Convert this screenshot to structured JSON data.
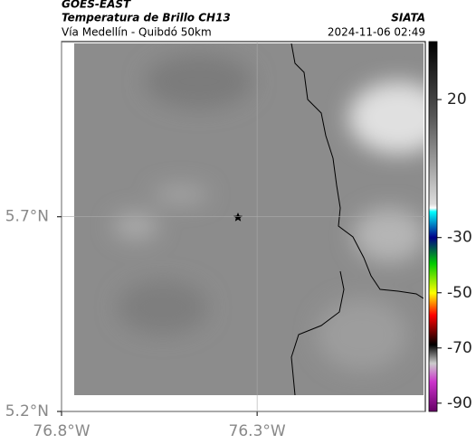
{
  "header": {
    "title": "GOES-EAST",
    "subtitle": "Temperatura de Brillo CH13",
    "route": "Vía Medellín - Quibdó 50km",
    "source": "SIATA",
    "timestamp": "2024-11-06 02:49"
  },
  "map": {
    "xlim": [
      -76.8,
      -75.87
    ],
    "ylim": [
      5.2,
      6.15
    ],
    "xticks": [
      {
        "value": -76.8,
        "label": "76.8°W"
      },
      {
        "value": -76.3,
        "label": "76.3°W"
      }
    ],
    "yticks": [
      {
        "value": 5.2,
        "label": "5.2°N"
      },
      {
        "value": 5.7,
        "label": "5.7°N"
      }
    ],
    "grid": true
  },
  "colorbar": {
    "lim": [
      -93,
      41
    ],
    "ticks": [
      20,
      -30,
      -50,
      -70,
      -90
    ]
  }
}
